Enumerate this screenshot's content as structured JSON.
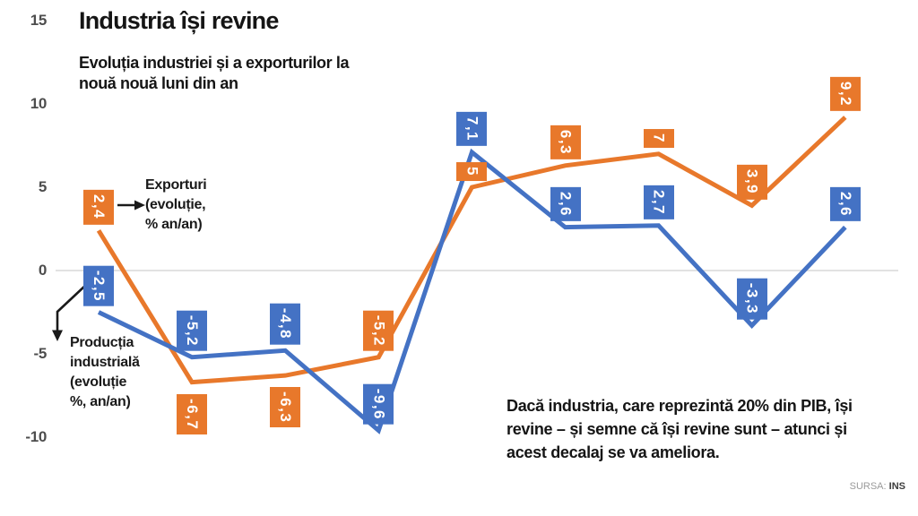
{
  "header": {
    "title": "Industria își revine",
    "subtitle": "Evoluția industriei și a exporturilor la\nnouă nouă luni din an"
  },
  "annotations": {
    "exports_label": "Exporturi\n(evoluție,\n% an/an)",
    "production_label": "Producția\nindustrială\n(evoluție\n%, an/an)",
    "comment": "Dacă industria, care reprezintă 20% din PIB, își\nrevine – și semne că își revine sunt – atunci și\nacest decalaj se va ameliora.",
    "source_prefix": "SURSA:",
    "source_value": "INS"
  },
  "chart_data": {
    "type": "line",
    "title": "Industria își revine",
    "subtitle": "Evoluția industriei și a exporturilor la nouă nouă luni din an",
    "points": 9,
    "y_ticks": [
      15,
      10,
      5,
      0,
      -5,
      -10
    ],
    "ylim": [
      -10,
      15
    ],
    "grid": "zero-line-only",
    "zero_gridline_color": "#d9d9d9",
    "legend_position": "inline-callouts-near-first-points",
    "series": [
      {
        "name": "Exporturi (evoluție, % an/an)",
        "color": "#E8782B",
        "values": [
          2.4,
          -6.7,
          -6.3,
          -5.2,
          5,
          6.3,
          7,
          3.9,
          9.2
        ],
        "labels": [
          "2,4",
          "-6,7",
          "-6,3",
          "-5,2",
          "5",
          "6,3",
          "7",
          "3,9",
          "9,2"
        ],
        "label_positions": [
          "above",
          "below",
          "below",
          "above",
          "above",
          "above",
          "above",
          "above",
          "above"
        ]
      },
      {
        "name": "Producția industrială (evoluție %, an/an)",
        "color": "#4472C4",
        "values": [
          -2.5,
          -5.2,
          -4.8,
          -9.6,
          7.1,
          2.6,
          2.7,
          -3.3,
          2.6
        ],
        "labels": [
          "-2,5",
          "-5,2",
          "-4,8",
          "-9,6",
          "7,1",
          "2,6",
          "2,7",
          "-3,3",
          "2,6"
        ],
        "label_positions": [
          "above",
          "above",
          "above",
          "above",
          "above",
          "above",
          "above",
          "above",
          "above"
        ]
      }
    ],
    "source": "SURSA: INS"
  }
}
